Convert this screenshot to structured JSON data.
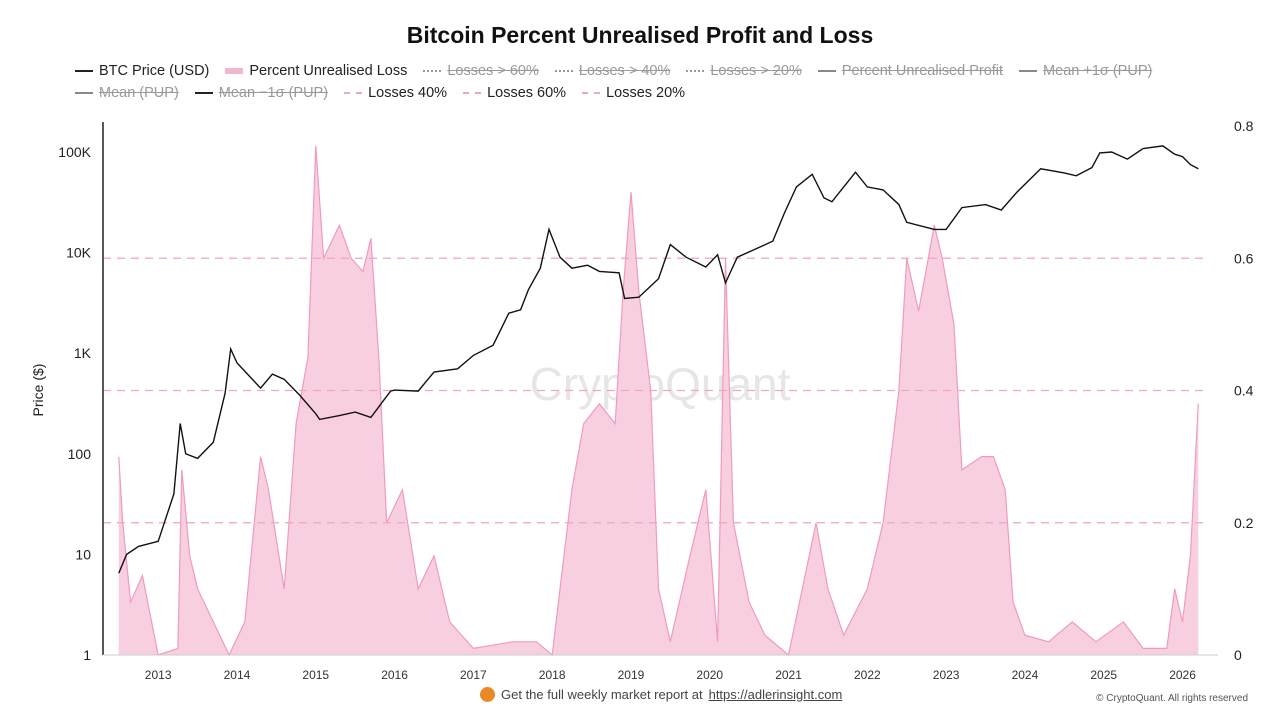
{
  "chart_data": {
    "type": "line",
    "title": "Bitcoin Percent Unrealised Profit and Loss",
    "ylabel": "Price ($)",
    "y_left": {
      "scale": "log",
      "ticks": [
        1,
        10,
        100,
        1000,
        10000,
        100000
      ],
      "tick_labels": [
        "1",
        "10",
        "100",
        "1K",
        "10K",
        "100K"
      ]
    },
    "y_right": {
      "range": [
        0,
        0.8
      ],
      "ticks": [
        0,
        0.2,
        0.4,
        0.6,
        0.8
      ],
      "tick_labels": [
        "0",
        "0.2",
        "0.4",
        "0.6",
        "0.8"
      ]
    },
    "x_ticks": [
      "2013",
      "2014",
      "2015",
      "2016",
      "2017",
      "2018",
      "2019",
      "2020",
      "2021",
      "2022",
      "2023",
      "2024",
      "2025",
      "2026"
    ],
    "xlim": [
      2012.3,
      2026.45
    ],
    "legend": [
      {
        "label": "BTC Price (USD)",
        "style": "line",
        "active": true
      },
      {
        "label": "Percent Unrealised Loss",
        "style": "fill",
        "active": true
      },
      {
        "label": "Losses > 60%",
        "style": "dot",
        "active": false
      },
      {
        "label": "Losses > 40%",
        "style": "dot",
        "active": false
      },
      {
        "label": "Losses > 20%",
        "style": "dot",
        "active": false
      },
      {
        "label": "Percent Unrealised Profit",
        "style": "grey",
        "active": false
      },
      {
        "label": "Mean +1σ (PUP)",
        "style": "grey",
        "active": false
      },
      {
        "label": "Mean (PUP)",
        "style": "grey",
        "active": false
      },
      {
        "label": "Mean −1σ (PUP)",
        "style": "line",
        "active": false
      },
      {
        "label": "Losses 40%",
        "style": "dash",
        "active": true
      },
      {
        "label": "Losses 60%",
        "style": "dash",
        "active": true
      },
      {
        "label": "Losses 20%",
        "style": "dash",
        "active": true
      }
    ],
    "threshold_lines": [
      0.6,
      0.4,
      0.2
    ],
    "series": [
      {
        "name": "BTC Price (USD)",
        "axis": "left",
        "color": "#111111",
        "points": [
          [
            2012.5,
            6.5
          ],
          [
            2012.6,
            10
          ],
          [
            2012.75,
            12
          ],
          [
            2013.0,
            13.5
          ],
          [
            2013.2,
            40
          ],
          [
            2013.28,
            200
          ],
          [
            2013.35,
            100
          ],
          [
            2013.5,
            90
          ],
          [
            2013.7,
            130
          ],
          [
            2013.85,
            400
          ],
          [
            2013.92,
            1100
          ],
          [
            2014.0,
            800
          ],
          [
            2014.15,
            600
          ],
          [
            2014.3,
            450
          ],
          [
            2014.45,
            620
          ],
          [
            2014.6,
            550
          ],
          [
            2014.8,
            380
          ],
          [
            2015.0,
            250
          ],
          [
            2015.05,
            220
          ],
          [
            2015.3,
            240
          ],
          [
            2015.5,
            260
          ],
          [
            2015.7,
            230
          ],
          [
            2015.85,
            330
          ],
          [
            2015.95,
            420
          ],
          [
            2016.0,
            430
          ],
          [
            2016.3,
            420
          ],
          [
            2016.5,
            650
          ],
          [
            2016.8,
            700
          ],
          [
            2017.0,
            950
          ],
          [
            2017.25,
            1200
          ],
          [
            2017.45,
            2500
          ],
          [
            2017.6,
            2700
          ],
          [
            2017.7,
            4300
          ],
          [
            2017.85,
            7000
          ],
          [
            2017.96,
            17000
          ],
          [
            2018.1,
            9000
          ],
          [
            2018.25,
            7000
          ],
          [
            2018.45,
            7500
          ],
          [
            2018.6,
            6500
          ],
          [
            2018.85,
            6300
          ],
          [
            2018.92,
            3500
          ],
          [
            2019.1,
            3600
          ],
          [
            2019.35,
            5500
          ],
          [
            2019.5,
            12000
          ],
          [
            2019.7,
            9000
          ],
          [
            2019.95,
            7200
          ],
          [
            2020.1,
            9500
          ],
          [
            2020.2,
            5000
          ],
          [
            2020.35,
            9000
          ],
          [
            2020.6,
            11000
          ],
          [
            2020.8,
            13000
          ],
          [
            2020.95,
            25000
          ],
          [
            2021.1,
            45000
          ],
          [
            2021.3,
            60000
          ],
          [
            2021.45,
            35000
          ],
          [
            2021.55,
            32000
          ],
          [
            2021.7,
            45000
          ],
          [
            2021.85,
            63000
          ],
          [
            2022.0,
            45000
          ],
          [
            2022.2,
            42000
          ],
          [
            2022.4,
            30000
          ],
          [
            2022.5,
            20000
          ],
          [
            2022.85,
            17000
          ],
          [
            2023.0,
            17000
          ],
          [
            2023.2,
            28000
          ],
          [
            2023.5,
            30000
          ],
          [
            2023.7,
            26500
          ],
          [
            2023.9,
            40000
          ],
          [
            2024.2,
            68000
          ],
          [
            2024.5,
            62000
          ],
          [
            2024.65,
            58000
          ],
          [
            2024.85,
            70000
          ],
          [
            2024.95,
            98000
          ],
          [
            2025.1,
            100000
          ],
          [
            2025.3,
            85000
          ],
          [
            2025.5,
            108000
          ],
          [
            2025.75,
            115000
          ],
          [
            2025.9,
            95000
          ],
          [
            2026.0,
            90000
          ],
          [
            2026.1,
            75000
          ],
          [
            2026.2,
            68000
          ]
        ]
      },
      {
        "name": "Percent Unrealised Loss",
        "axis": "right",
        "color": "#f09ac0",
        "points": [
          [
            2012.5,
            0.3
          ],
          [
            2012.55,
            0.2
          ],
          [
            2012.65,
            0.08
          ],
          [
            2012.8,
            0.12
          ],
          [
            2013.0,
            0.0
          ],
          [
            2013.25,
            0.01
          ],
          [
            2013.3,
            0.28
          ],
          [
            2013.4,
            0.15
          ],
          [
            2013.5,
            0.1
          ],
          [
            2013.7,
            0.05
          ],
          [
            2013.9,
            0.0
          ],
          [
            2014.1,
            0.05
          ],
          [
            2014.3,
            0.3
          ],
          [
            2014.4,
            0.25
          ],
          [
            2014.6,
            0.1
          ],
          [
            2014.75,
            0.35
          ],
          [
            2014.9,
            0.45
          ],
          [
            2015.0,
            0.77
          ],
          [
            2015.1,
            0.6
          ],
          [
            2015.3,
            0.65
          ],
          [
            2015.45,
            0.6
          ],
          [
            2015.6,
            0.58
          ],
          [
            2015.7,
            0.63
          ],
          [
            2015.8,
            0.45
          ],
          [
            2015.9,
            0.2
          ],
          [
            2016.1,
            0.25
          ],
          [
            2016.3,
            0.1
          ],
          [
            2016.5,
            0.15
          ],
          [
            2016.7,
            0.05
          ],
          [
            2017.0,
            0.01
          ],
          [
            2017.5,
            0.02
          ],
          [
            2017.8,
            0.02
          ],
          [
            2018.0,
            0.0
          ],
          [
            2018.1,
            0.1
          ],
          [
            2018.25,
            0.25
          ],
          [
            2018.4,
            0.35
          ],
          [
            2018.6,
            0.38
          ],
          [
            2018.8,
            0.35
          ],
          [
            2018.9,
            0.55
          ],
          [
            2019.0,
            0.7
          ],
          [
            2019.1,
            0.55
          ],
          [
            2019.25,
            0.4
          ],
          [
            2019.35,
            0.1
          ],
          [
            2019.5,
            0.02
          ],
          [
            2019.75,
            0.15
          ],
          [
            2019.95,
            0.25
          ],
          [
            2020.1,
            0.02
          ],
          [
            2020.2,
            0.6
          ],
          [
            2020.3,
            0.2
          ],
          [
            2020.5,
            0.08
          ],
          [
            2020.7,
            0.03
          ],
          [
            2021.0,
            0.0
          ],
          [
            2021.35,
            0.2
          ],
          [
            2021.5,
            0.1
          ],
          [
            2021.7,
            0.03
          ],
          [
            2022.0,
            0.1
          ],
          [
            2022.2,
            0.2
          ],
          [
            2022.4,
            0.4
          ],
          [
            2022.5,
            0.6
          ],
          [
            2022.65,
            0.52
          ],
          [
            2022.85,
            0.65
          ],
          [
            2022.95,
            0.6
          ],
          [
            2023.1,
            0.5
          ],
          [
            2023.2,
            0.28
          ],
          [
            2023.45,
            0.3
          ],
          [
            2023.6,
            0.3
          ],
          [
            2023.75,
            0.25
          ],
          [
            2023.85,
            0.08
          ],
          [
            2024.0,
            0.03
          ],
          [
            2024.3,
            0.02
          ],
          [
            2024.6,
            0.05
          ],
          [
            2024.9,
            0.02
          ],
          [
            2025.25,
            0.05
          ],
          [
            2025.5,
            0.01
          ],
          [
            2025.8,
            0.01
          ],
          [
            2025.9,
            0.1
          ],
          [
            2026.0,
            0.05
          ],
          [
            2026.1,
            0.15
          ],
          [
            2026.2,
            0.38
          ]
        ]
      }
    ]
  },
  "watermark": "CryptoQuant",
  "footer": {
    "text": "Get the full weekly market report at",
    "link": "https://adlerinsight.com",
    "copyright": "© CryptoQuant. All rights reserved"
  }
}
